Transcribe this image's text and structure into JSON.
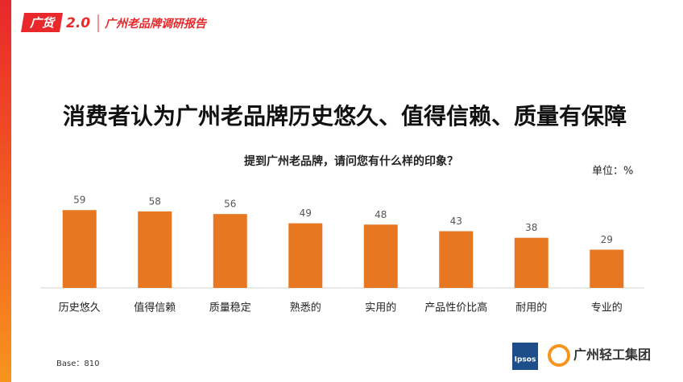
{
  "header": {
    "logo": "广货",
    "logo_version": "2.0",
    "report": "广州老品牌调研报告"
  },
  "chart_data": {
    "type": "bar",
    "title": "消费者认为广州老品牌历史悠久、值得信赖、质量有保障",
    "subtitle": "提到广州老品牌，请问您有什么样的印象？",
    "unit_label": "单位：%",
    "categories": [
      "历史悠久",
      "值得信赖",
      "质量稳定",
      "熟悉的",
      "实用的",
      "产品性价比高",
      "耐用的",
      "专业的"
    ],
    "values": [
      59,
      58,
      56,
      49,
      48,
      43,
      38,
      29
    ],
    "color": "#e87722"
  },
  "footer": {
    "base": "Base：810",
    "ipsos": "Ipsos",
    "company": "广州轻工集团"
  }
}
